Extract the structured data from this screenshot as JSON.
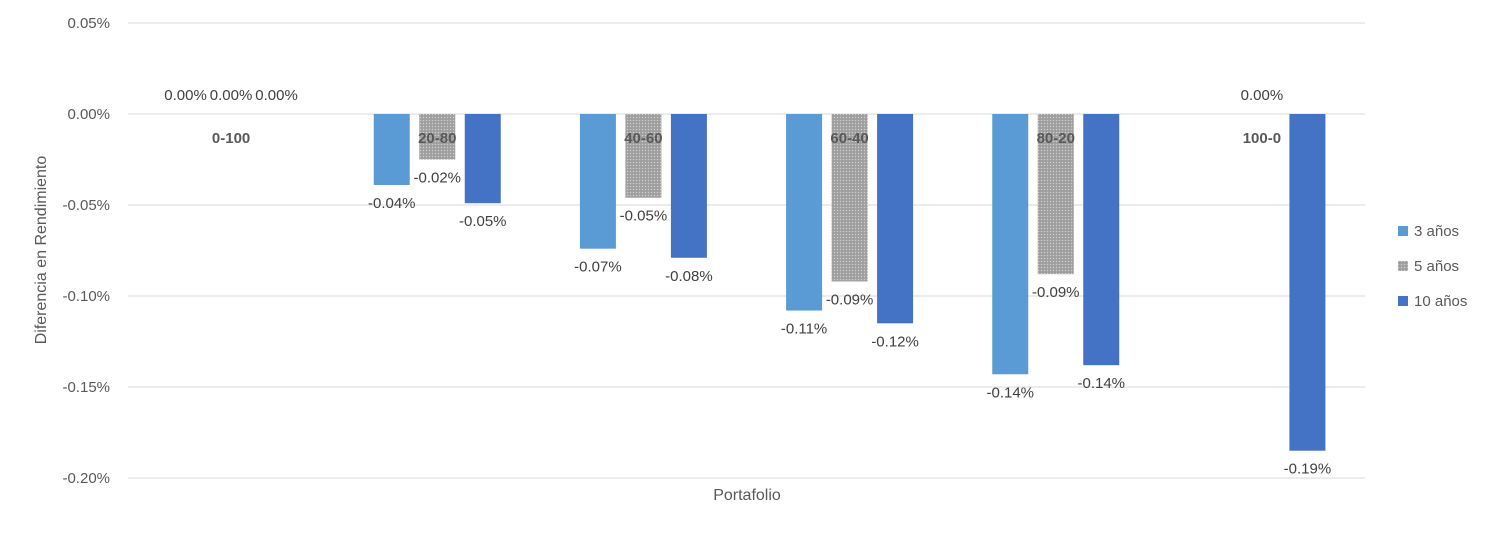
{
  "chart_data": {
    "type": "bar",
    "title": "",
    "xlabel": "Portafolio",
    "ylabel": "Diferencia en Rendimiento",
    "categories": [
      "0-100",
      "20-80",
      "40-60",
      "60-40",
      "80-20",
      "100-0"
    ],
    "ylim": [
      -0.2,
      0.05
    ],
    "yticks": [
      "0.05%",
      "0.00%",
      "-0.05%",
      "-0.10%",
      "-0.15%",
      "-0.20%"
    ],
    "ytick_values": [
      0.05,
      0.0,
      -0.05,
      -0.1,
      -0.15,
      -0.2
    ],
    "grid": true,
    "legend_position": "right",
    "series": [
      {
        "name": "3 años",
        "color": "#5b9bd5",
        "pattern": "solid",
        "values": [
          0.0,
          -0.039,
          -0.074,
          -0.108,
          -0.143,
          null
        ],
        "labels": [
          "0.00%",
          "-0.04%",
          "-0.07%",
          "-0.11%",
          "-0.14%",
          null
        ]
      },
      {
        "name": "5 años",
        "color": "#a5a5a5",
        "pattern": "dotted",
        "values": [
          0.0,
          -0.025,
          -0.046,
          -0.092,
          -0.088,
          0.0
        ],
        "labels": [
          "0.00%",
          "-0.02%",
          "-0.05%",
          "-0.09%",
          "-0.09%",
          "0.00%"
        ]
      },
      {
        "name": "10 años",
        "color": "#4472c4",
        "pattern": "solid",
        "values": [
          0.0,
          -0.049,
          -0.079,
          -0.115,
          -0.138,
          -0.185
        ],
        "labels": [
          "0.00%",
          "-0.05%",
          "-0.08%",
          "-0.12%",
          "-0.14%",
          "-0.19%"
        ]
      }
    ]
  }
}
